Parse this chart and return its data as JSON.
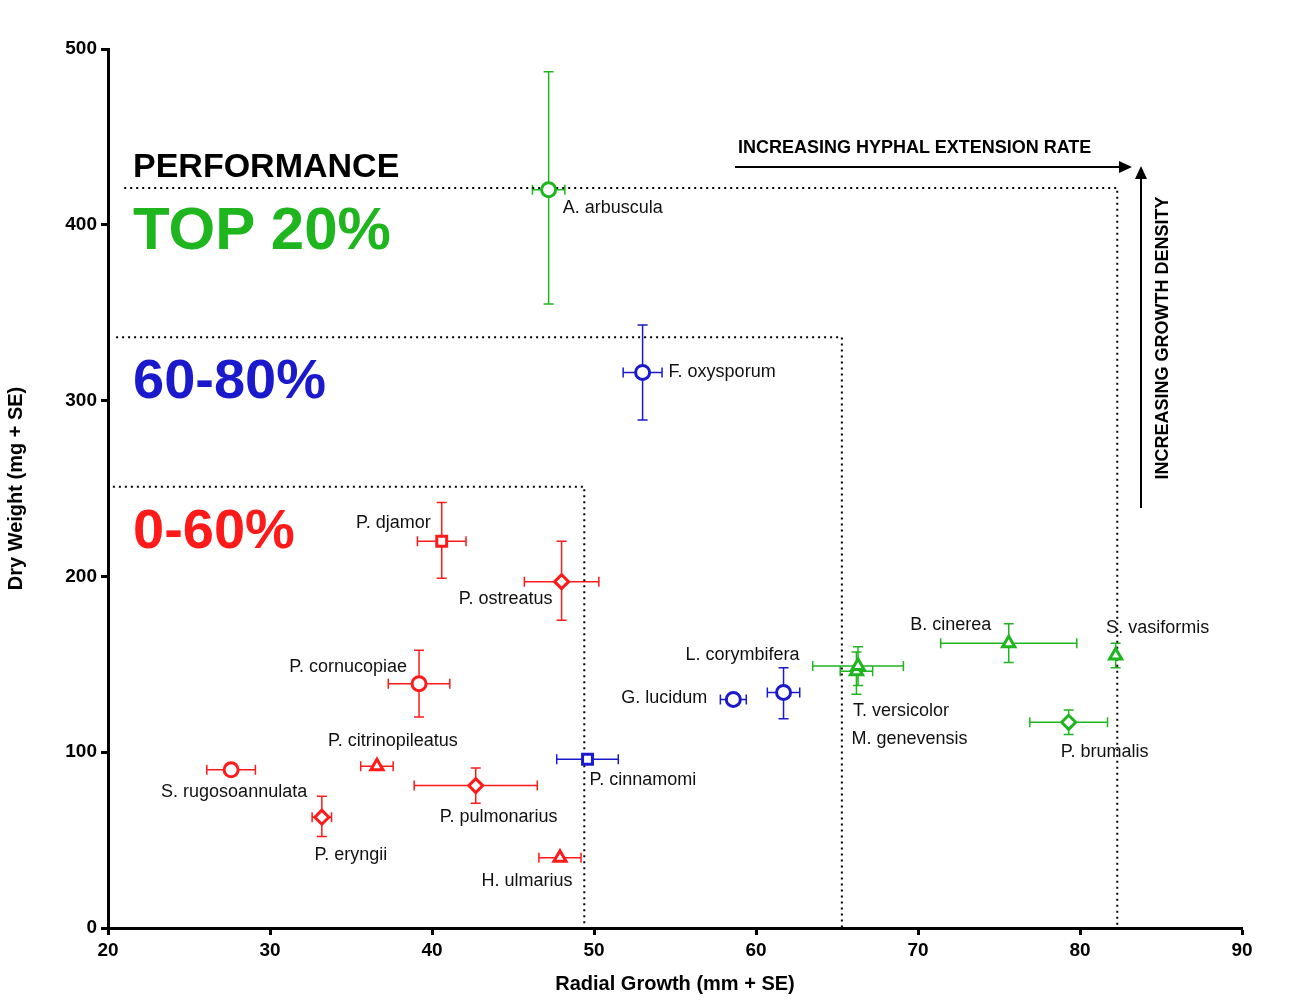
{
  "chart_data": {
    "type": "scatter",
    "xlabel": "Radial Growth (mm + SE)",
    "ylabel": "Dry Weight (mg + SE)",
    "xlim": [
      20,
      90
    ],
    "xticks": [
      20,
      30,
      40,
      50,
      60,
      70,
      80,
      90
    ],
    "ylim": [
      0,
      500
    ],
    "yticks": [
      0,
      100,
      200,
      300,
      400,
      500
    ],
    "grid": false,
    "legend": false,
    "annotations": [
      "PERFORMANCE",
      "TOP 20%",
      "60-80%",
      "0-60%",
      "INCREASING HYPHAL EXTENSION RATE",
      "INCREASING GROWTH DENSITY"
    ],
    "series": [
      {
        "name": "A. arbuscula",
        "color": "#1fb51f",
        "marker": "circle",
        "x": [
          47.2
        ],
        "values": [
          420
        ],
        "errors": [
          [
            355,
            487
          ]
        ],
        "xerrors": [
          1
        ]
      },
      {
        "name": "F. oxysporum",
        "color": "#1a1acc",
        "marker": "circle",
        "x": [
          53
        ],
        "values": [
          316
        ],
        "errors": [
          [
            289,
            343
          ]
        ],
        "xerrors": [
          1.2
        ]
      },
      {
        "name": "P. djamor",
        "color": "#ff1a1a",
        "marker": "square",
        "x": [
          40.6
        ],
        "values": [
          220
        ],
        "errors": [
          [
            199,
            242
          ]
        ],
        "xerrors": [
          1.5
        ]
      },
      {
        "name": "P. ostreatus",
        "color": "#ff1a1a",
        "marker": "diamond",
        "x": [
          48
        ],
        "values": [
          197
        ],
        "errors": [
          [
            175,
            220
          ]
        ],
        "xerrors": [
          2.3
        ]
      },
      {
        "name": "P. cornucopiae",
        "color": "#ff1a1a",
        "marker": "circle",
        "x": [
          39.2
        ],
        "values": [
          139
        ],
        "errors": [
          [
            120,
            158
          ]
        ],
        "xerrors": [
          1.9
        ]
      },
      {
        "name": "P. citrinopileatus",
        "color": "#ff1a1a",
        "marker": "triangle",
        "x": [
          36.6
        ],
        "values": [
          92
        ],
        "xerrors": [
          1
        ]
      },
      {
        "name": "S. rugosoannulata",
        "color": "#ff1a1a",
        "marker": "circle",
        "x": [
          27.6
        ],
        "values": [
          90
        ],
        "xerrors": [
          1.5
        ]
      },
      {
        "name": "P. pulmonarius",
        "color": "#ff1a1a",
        "marker": "diamond",
        "x": [
          42.7
        ],
        "values": [
          81
        ],
        "errors": [
          [
            71,
            91
          ]
        ],
        "xerrors": [
          3.8
        ]
      },
      {
        "name": "P. eryngii",
        "color": "#ff1a1a",
        "marker": "diamond",
        "x": [
          33.2
        ],
        "values": [
          63
        ],
        "errors": [
          [
            52,
            75
          ]
        ],
        "xerrors": [
          0.6
        ]
      },
      {
        "name": "H. ulmarius",
        "color": "#ff1a1a",
        "marker": "triangle",
        "x": [
          47.9
        ],
        "values": [
          40
        ],
        "xerrors": [
          1.3
        ]
      },
      {
        "name": "P. cinnamomi",
        "color": "#1a1acc",
        "marker": "square",
        "x": [
          49.6
        ],
        "values": [
          96
        ],
        "xerrors": [
          1.9
        ]
      },
      {
        "name": "G. lucidum",
        "color": "#1a1acc",
        "marker": "circle",
        "x": [
          58.6
        ],
        "values": [
          130
        ],
        "xerrors": [
          0.8
        ]
      },
      {
        "name": "L. corymbifera",
        "color": "#1a1acc",
        "marker": "circle",
        "x": [
          61.7
        ],
        "values": [
          134
        ],
        "errors": [
          [
            119,
            148
          ]
        ],
        "xerrors": [
          1
        ]
      },
      {
        "name": "T. versicolor",
        "color": "#1fb51f",
        "marker": "triangle",
        "x": [
          66.3
        ],
        "values": [
          149
        ],
        "errors": [
          [
            138,
            160
          ]
        ],
        "xerrors": [
          2.8
        ]
      },
      {
        "name": "M. genevensis",
        "color": "#1fb51f",
        "marker": "triangle",
        "x": [
          66.2
        ],
        "values": [
          146
        ],
        "errors": [
          [
            133,
            157
          ]
        ],
        "xerrors": [
          1
        ]
      },
      {
        "name": "B. cinerea",
        "color": "#1fb51f",
        "marker": "triangle",
        "x": [
          75.6
        ],
        "values": [
          162
        ],
        "errors": [
          [
            151,
            173
          ]
        ],
        "xerrors": [
          4.2
        ]
      },
      {
        "name": "S. vasiformis",
        "color": "#1fb51f",
        "marker": "triangle",
        "x": [
          82.2
        ],
        "values": [
          155
        ],
        "errors": [
          [
            148,
            162
          ]
        ]
      },
      {
        "name": "P. brumalis",
        "color": "#1fb51f",
        "marker": "diamond",
        "x": [
          79.3
        ],
        "values": [
          117
        ],
        "errors": [
          [
            110,
            124
          ]
        ],
        "xerrors": [
          2.4
        ]
      },
      {
        "type": "line",
        "color": "#000000",
        "line_style": "dotted",
        "marker": "none",
        "x": [
          20.3,
          49.4,
          49.4
        ],
        "values": [
          251,
          251,
          0
        ]
      },
      {
        "type": "line",
        "color": "#000000",
        "line_style": "dotted",
        "marker": "none",
        "x": [
          20.5,
          65.3,
          65.3
        ],
        "values": [
          336,
          336,
          0
        ]
      },
      {
        "type": "line",
        "color": "#000000",
        "line_style": "dotted",
        "marker": "none",
        "x": [
          21,
          82.3,
          82.3
        ],
        "values": [
          421,
          421,
          0
        ]
      }
    ]
  }
}
